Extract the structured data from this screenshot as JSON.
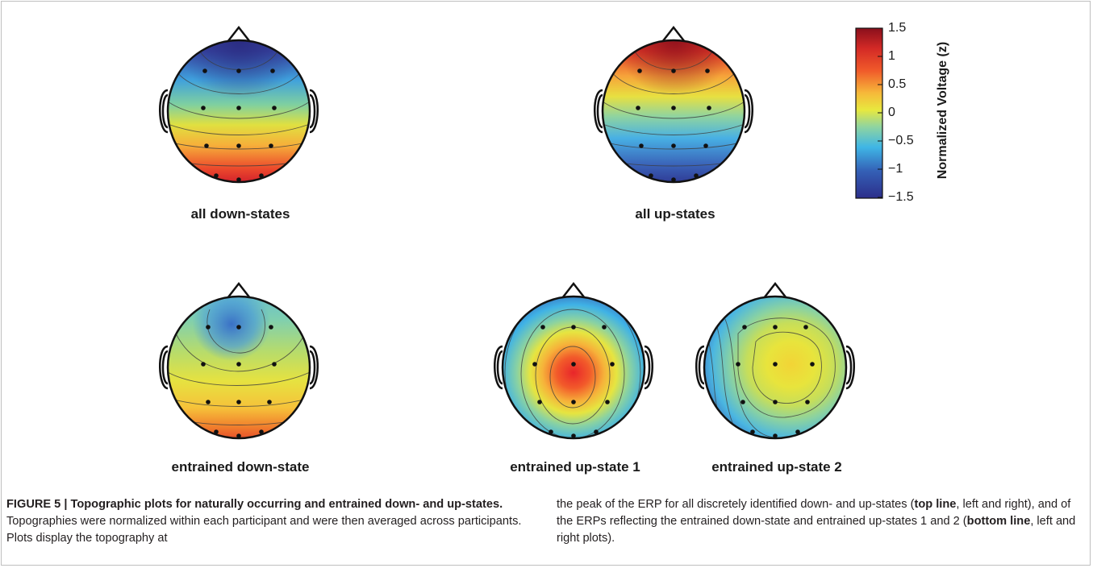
{
  "figure": {
    "panels": [
      {
        "label": "all down-states"
      },
      {
        "label": "all up-states"
      },
      {
        "label": "entrained down-state"
      },
      {
        "label": "entrained up-state 1"
      },
      {
        "label": "entrained up-state 2"
      }
    ],
    "colorbar": {
      "title": "Normalized Voltage (z)",
      "ticks": [
        "1.5",
        "1",
        "0.5",
        "0",
        "−0.5",
        "−1",
        "−1.5"
      ],
      "range": [
        -1.5,
        1.5
      ],
      "colormap": "jet"
    }
  },
  "caption": {
    "figure_label": "FIGURE 5 | Topographic plots for naturally occurring and entrained down- and up-states.",
    "text_left_1": " Topographies were normalized within each participant and were then averaged across participants. Plots display the topography at ",
    "text_right_1": "the peak of the ERP for all discretely identified down- and up-states (",
    "bold_top_line": "top line",
    "text_right_2": ", left and right), and of the ERPs reflecting the entrained down-state and entrained up-states 1 and 2 (",
    "bold_bottom_line": "bottom line",
    "text_right_3": ", left and right plots)."
  }
}
